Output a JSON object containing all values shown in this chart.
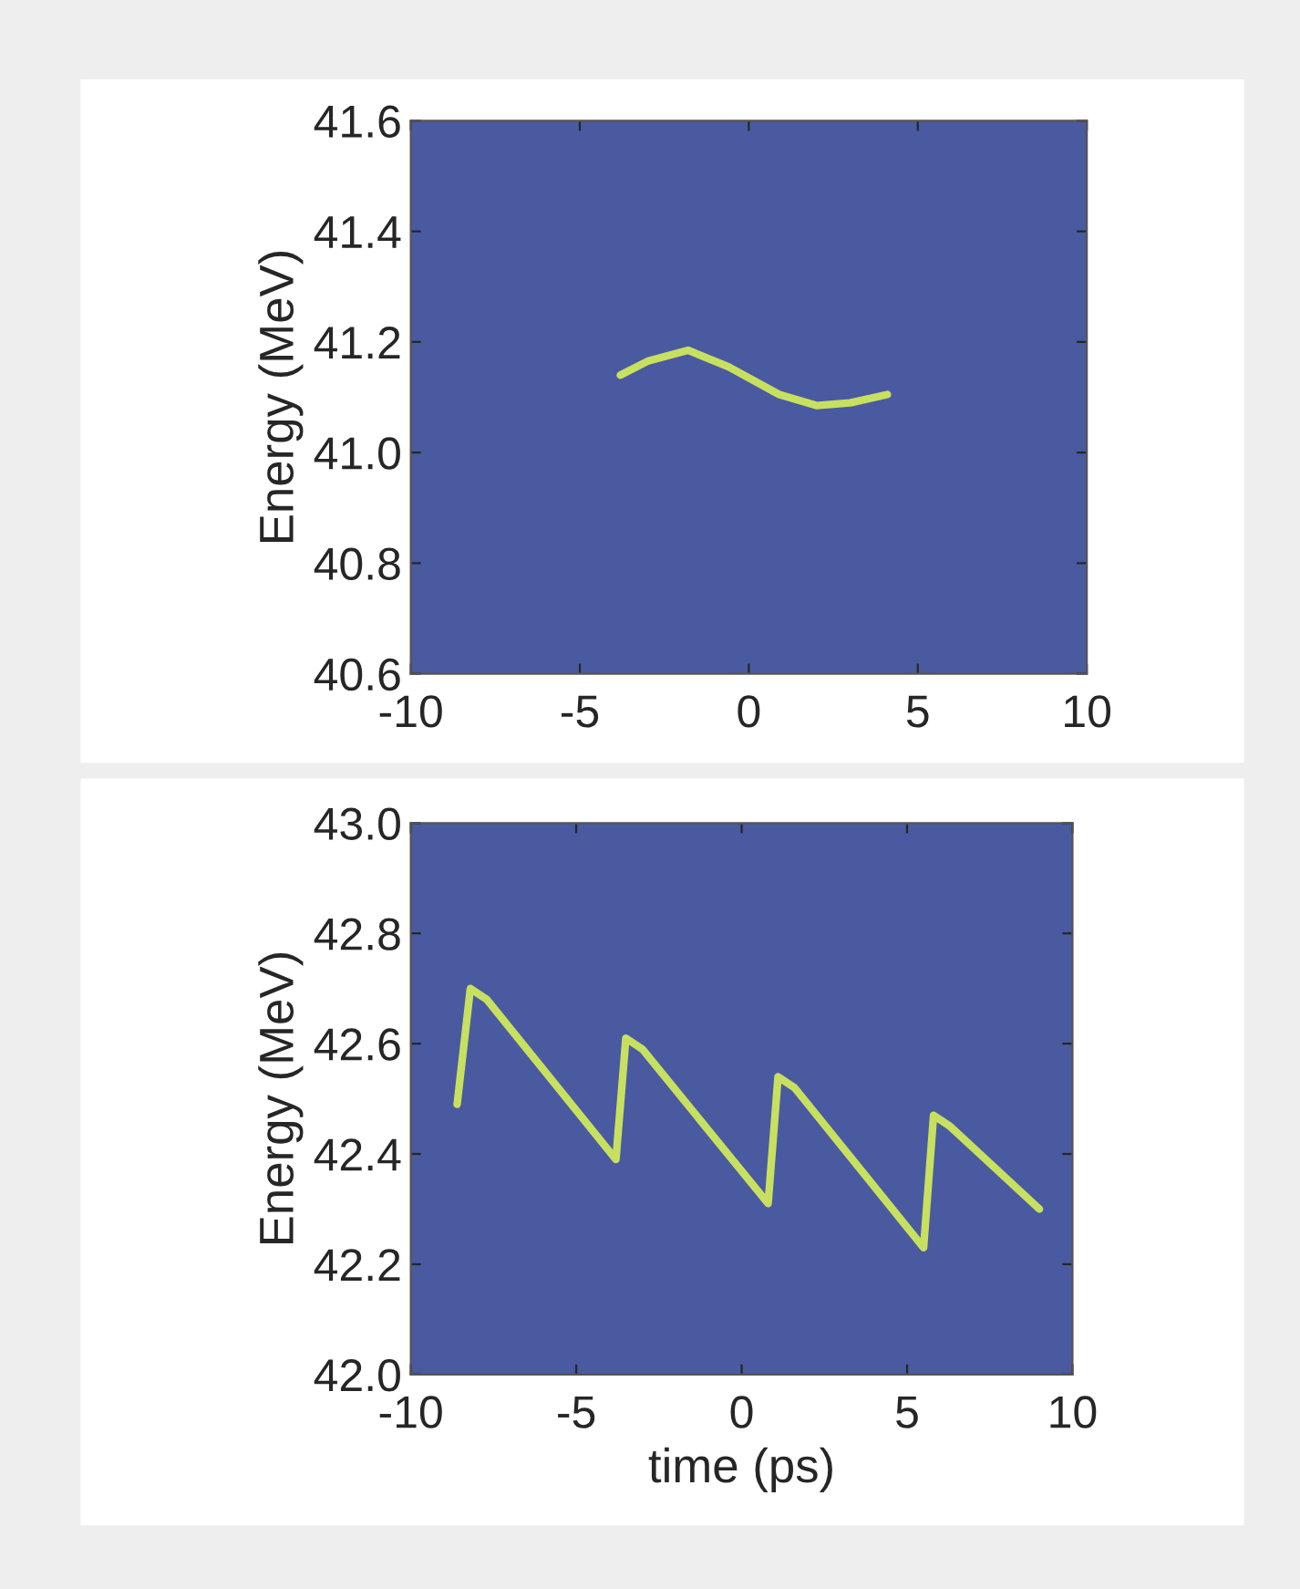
{
  "chart_data": [
    {
      "type": "line",
      "ylabel": "Energy (MeV)",
      "xlim": [
        -10,
        10
      ],
      "ylim": [
        40.6,
        41.6
      ],
      "xticks": [
        -10,
        -5,
        0,
        5,
        10
      ],
      "yticks": [
        40.6,
        40.8,
        {
          "value": 41,
          "label": "41.0"
        },
        41.2,
        41.4,
        41.6
      ],
      "grid": false,
      "series": [
        {
          "color": "#c8e060",
          "x": [
            -3.8,
            -3.0,
            -1.8,
            -0.6,
            0.9,
            2.0,
            3.0,
            4.1
          ],
          "values": [
            41.14,
            41.165,
            41.185,
            41.155,
            41.105,
            41.085,
            41.09,
            41.105
          ]
        }
      ]
    },
    {
      "type": "line",
      "xlabel": "time (ps)",
      "ylabel": "Energy (MeV)",
      "xlim": [
        -10,
        10
      ],
      "ylim": [
        42.0,
        43.0
      ],
      "xticks": [
        -10,
        -5,
        0,
        5,
        10
      ],
      "yticks": [
        {
          "value": 42,
          "label": "42.0"
        },
        42.2,
        42.4,
        42.6,
        42.8,
        {
          "value": 43,
          "label": "43.0"
        }
      ],
      "grid": false,
      "series": [
        {
          "color": "#c8e060",
          "x": [
            -8.6,
            -8.2,
            -7.7,
            -3.8,
            -3.5,
            -3.0,
            0.8,
            1.1,
            1.6,
            5.5,
            5.8,
            6.3,
            9.0
          ],
          "values": [
            42.49,
            42.7,
            42.68,
            42.39,
            42.61,
            42.59,
            42.31,
            42.54,
            42.52,
            42.23,
            42.47,
            42.45,
            42.3
          ]
        }
      ]
    }
  ]
}
